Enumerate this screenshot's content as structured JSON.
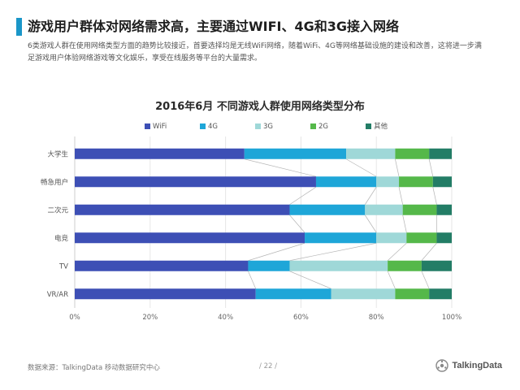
{
  "page": {
    "title": "游戏用户群体对网络需求高，主要通过WIFI、4G和3G接入网络",
    "description": "6类游戏人群在使用网络类型方面的趋势比较接近，首要选择均是无线WiFi网络，随着WiFi、4G等网络基础设施的建设和改善，这将进一步满足游戏用户体验网络游戏等文化娱乐，享受在线服务等平台的大量需求。"
  },
  "footer": {
    "source": "数据来源：TalkingData  移动数据研究中心",
    "page_number": "/ 22 /",
    "logo_text": "TalkingData"
  },
  "colors": {
    "accent": "#1a96c8",
    "wifi": "#3d4fb5",
    "g4": "#1ea6d8",
    "g3": "#9fd8d8",
    "g2": "#55b84a",
    "other": "#237d66"
  },
  "chart_data": {
    "type": "bar",
    "orientation": "horizontal",
    "stacked": true,
    "title": "2016年6月  不同游戏人群使用网络类型分布",
    "categories": [
      "大学生",
      "畅急用户",
      "二次元",
      "电竞",
      "TV",
      "VR/AR"
    ],
    "series": [
      {
        "name": "WiFi",
        "color": "#3d4fb5",
        "values": [
          45,
          64,
          57,
          61,
          46,
          48
        ]
      },
      {
        "name": "4G",
        "color": "#1ea6d8",
        "values": [
          27,
          16,
          20,
          19,
          11,
          20
        ]
      },
      {
        "name": "3G",
        "color": "#9fd8d8",
        "values": [
          13,
          6,
          10,
          8,
          26,
          17
        ]
      },
      {
        "name": "2G",
        "color": "#55b84a",
        "values": [
          9,
          9,
          9,
          8,
          9,
          9
        ]
      },
      {
        "name": "其他",
        "color": "#237d66",
        "values": [
          6,
          5,
          4,
          4,
          8,
          6
        ]
      }
    ],
    "xlim": [
      0,
      100
    ],
    "xticks": [
      "0%",
      "20%",
      "40%",
      "60%",
      "80%",
      "100%"
    ],
    "legend_position": "top",
    "grid": true
  }
}
